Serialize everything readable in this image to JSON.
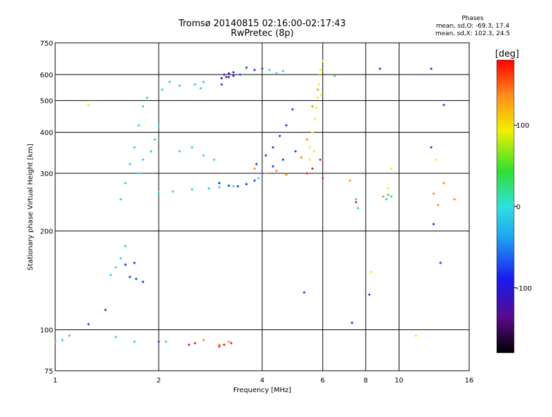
{
  "chart_data": {
    "type": "scatter",
    "title": "Tromsø 20140815 02:16:00-02:17:43",
    "subtitle": "RwPretec (8p)",
    "xlabel": "Frequency [MHz]",
    "ylabel": "Stationary phase Virtual Height [km]",
    "x_scale": "log",
    "y_scale": "log",
    "xlim": [
      1,
      16
    ],
    "ylim": [
      75,
      750
    ],
    "x_ticks": [
      1,
      2,
      4,
      6,
      8,
      10,
      16
    ],
    "y_ticks": [
      75,
      100,
      200,
      300,
      400,
      500,
      600,
      750
    ],
    "grid": true,
    "phase_stats": {
      "heading": "Phases",
      "line_o": "mean, sd,O: -69.3, 17.4",
      "line_x": "mean, sd,X: 102.3, 24.5"
    },
    "colorbar": {
      "label": "[deg]",
      "range": [
        -180,
        180
      ],
      "ticks": [
        "100",
        "0",
        "-100"
      ],
      "tick_values": [
        100,
        0,
        -100
      ]
    },
    "series": [
      {
        "color_hint": "#30c8f0",
        "points": [
          [
            1.0,
            92
          ],
          [
            1.05,
            93
          ],
          [
            1.1,
            96
          ],
          [
            1.45,
            147
          ],
          [
            1.5,
            155
          ],
          [
            1.55,
            165
          ],
          [
            1.6,
            180
          ],
          [
            1.55,
            250
          ],
          [
            1.6,
            280
          ],
          [
            1.65,
            320
          ],
          [
            1.7,
            360
          ],
          [
            1.75,
            420
          ],
          [
            1.8,
            480
          ],
          [
            1.85,
            510
          ],
          [
            1.75,
            300
          ],
          [
            1.8,
            330
          ],
          [
            1.9,
            350
          ],
          [
            1.95,
            380
          ],
          [
            2.0,
            420
          ],
          [
            2.0,
            262
          ],
          [
            2.2,
            264
          ],
          [
            2.5,
            268
          ],
          [
            2.8,
            270
          ],
          [
            3.0,
            272
          ],
          [
            3.3,
            274
          ],
          [
            3.6,
            278
          ],
          [
            3.9,
            290
          ],
          [
            2.05,
            540
          ],
          [
            2.15,
            570
          ],
          [
            2.3,
            555
          ],
          [
            2.55,
            560
          ],
          [
            2.65,
            545
          ],
          [
            2.7,
            570
          ],
          [
            2.3,
            350
          ],
          [
            2.5,
            360
          ],
          [
            2.7,
            340
          ],
          [
            2.9,
            330
          ],
          [
            4.2,
            620
          ],
          [
            4.4,
            605
          ],
          [
            4.6,
            615
          ],
          [
            7.5,
            250
          ],
          [
            7.6,
            235
          ],
          [
            9.2,
            250
          ],
          [
            1.5,
            95
          ],
          [
            1.7,
            92
          ],
          [
            2.1,
            92
          ]
        ]
      },
      {
        "color_hint": "#1a3adf",
        "points": [
          [
            1.6,
            158
          ],
          [
            1.7,
            160
          ],
          [
            1.65,
            145
          ],
          [
            1.72,
            143
          ],
          [
            1.8,
            140
          ],
          [
            3.0,
            280
          ],
          [
            3.2,
            275
          ],
          [
            3.4,
            274
          ],
          [
            3.6,
            278
          ],
          [
            3.8,
            285
          ],
          [
            3.05,
            560
          ],
          [
            3.2,
            590
          ],
          [
            3.3,
            610
          ],
          [
            3.45,
            600
          ],
          [
            3.6,
            630
          ],
          [
            3.8,
            620
          ],
          [
            4.0,
            625
          ],
          [
            3.85,
            320
          ],
          [
            4.1,
            340
          ],
          [
            4.3,
            360
          ],
          [
            4.5,
            390
          ],
          [
            4.7,
            420
          ],
          [
            4.9,
            470
          ],
          [
            4.0,
            300
          ],
          [
            4.3,
            315
          ],
          [
            4.6,
            330
          ],
          [
            5.0,
            350
          ],
          [
            5.3,
            130
          ],
          [
            7.3,
            105
          ],
          [
            8.2,
            128
          ],
          [
            8.8,
            625
          ],
          [
            12.4,
            625
          ],
          [
            13.2,
            160
          ],
          [
            12.4,
            360
          ],
          [
            12.6,
            210
          ],
          [
            13.5,
            485
          ],
          [
            1.4,
            115
          ],
          [
            1.25,
            104
          ],
          [
            2.0,
            92
          ]
        ]
      },
      {
        "color_hint": "#ff8c1a",
        "points": [
          [
            3.0,
            90
          ],
          [
            2.7,
            93
          ],
          [
            3.2,
            92
          ],
          [
            3.8,
            310
          ],
          [
            4.1,
            300
          ],
          [
            4.4,
            305
          ],
          [
            4.7,
            297
          ],
          [
            5.2,
            335
          ],
          [
            5.4,
            380
          ],
          [
            5.6,
            480
          ],
          [
            5.8,
            540
          ],
          [
            5.9,
            600
          ],
          [
            7.2,
            285
          ],
          [
            9.0,
            255
          ],
          [
            13.5,
            280
          ],
          [
            12.6,
            260
          ],
          [
            14.5,
            250
          ],
          [
            13.0,
            240
          ]
        ]
      },
      {
        "color_hint": "#f0f000",
        "points": [
          [
            5.5,
            360
          ],
          [
            5.6,
            400
          ],
          [
            5.7,
            440
          ],
          [
            5.75,
            475
          ],
          [
            5.8,
            510
          ],
          [
            5.85,
            560
          ],
          [
            5.9,
            620
          ],
          [
            6.0,
            660
          ],
          [
            5.95,
            520
          ],
          [
            5.65,
            350
          ],
          [
            5.5,
            330
          ],
          [
            1.25,
            485
          ],
          [
            9.5,
            310
          ],
          [
            9.3,
            270
          ],
          [
            11.2,
            96
          ],
          [
            8.3,
            150
          ],
          [
            12.8,
            330
          ]
        ]
      },
      {
        "color_hint": "#e02020",
        "points": [
          [
            3.1,
            90
          ],
          [
            3.25,
            91
          ],
          [
            3.0,
            89
          ],
          [
            2.55,
            91
          ],
          [
            2.45,
            90
          ],
          [
            5.4,
            300
          ],
          [
            5.6,
            310
          ],
          [
            5.9,
            330
          ],
          [
            6.0,
            290
          ],
          [
            7.5,
            245
          ]
        ]
      },
      {
        "color_hint": "#50d050",
        "points": [
          [
            9.3,
            258
          ],
          [
            9.5,
            255
          ],
          [
            6.5,
            595
          ]
        ]
      },
      {
        "color_hint": "#5a0a8a",
        "points": [
          [
            3.1,
            600
          ],
          [
            3.15,
            590
          ],
          [
            3.2,
            605
          ],
          [
            3.05,
            585
          ],
          [
            3.3,
            595
          ]
        ]
      }
    ]
  }
}
